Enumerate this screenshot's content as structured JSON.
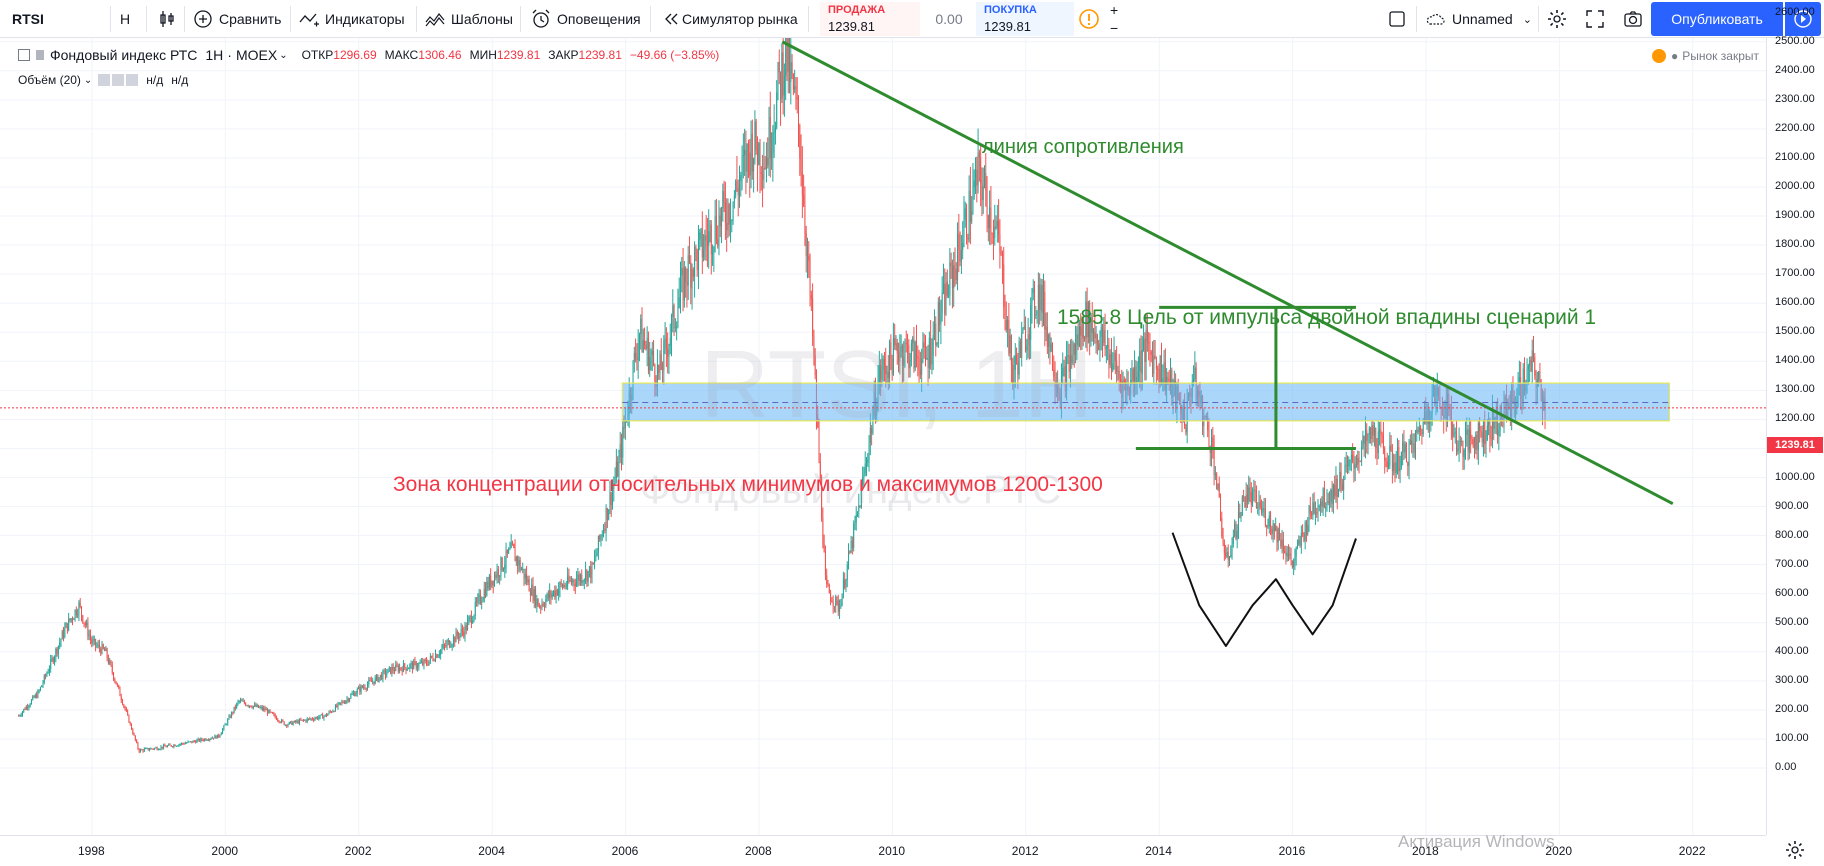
{
  "toolbar": {
    "symbol": "RTSI",
    "interval": "Н",
    "compare": "Сравнить",
    "indicators": "Индикаторы",
    "templates": "Шаблоны",
    "alerts": "Оповещения",
    "replay": "Симулятор рынка",
    "sell_label": "ПРОДАЖА",
    "sell_value": "1239.81",
    "spread": "0.00",
    "buy_label": "ПОКУПКА",
    "buy_value": "1239.81",
    "layout_name": "Unnamed",
    "publish": "Опубликовать"
  },
  "legend": {
    "title": "Фондовый индекс РТС",
    "interval": "1Н",
    "exchange": "MOEX",
    "open_label": "ОТКР",
    "open": "1296.69",
    "high_label": "МАКС",
    "high": "1306.46",
    "low_label": "МИН",
    "low": "1239.81",
    "close_label": "ЗАКР",
    "close": "1239.81",
    "change": "−49.66 (−3.85%)",
    "volume_label": "Объём (20)",
    "volume_na1": "н/д",
    "volume_na2": "н/д",
    "market_status": "Рынок закрыт"
  },
  "watermark": {
    "line1": "RTSI, 1Н",
    "line2": "Фондовый индекс РТС"
  },
  "annotations": {
    "resistance": "линия сопротивления",
    "target": "1585.8 Цель от импульса двойной впадины сценарий  1",
    "zone": "Зона концентрации относительных минимумов и максимумов 1200-1300"
  },
  "price_axis": {
    "ticks": [
      "2600.00",
      "2500.00",
      "2400.00",
      "2300.00",
      "2200.00",
      "2100.00",
      "2000.00",
      "1900.00",
      "1800.00",
      "1700.00",
      "1600.00",
      "1500.00",
      "1400.00",
      "1300.00",
      "1200.00",
      "1100.00",
      "1000.00",
      "900.00",
      "800.00",
      "700.00",
      "600.00",
      "500.00",
      "400.00",
      "300.00",
      "200.00",
      "100.00",
      "0.00"
    ],
    "last_price": "1239.81"
  },
  "time_axis": {
    "ticks": [
      "1998",
      "2000",
      "2002",
      "2004",
      "2006",
      "2008",
      "2010",
      "2012",
      "2014",
      "2016",
      "2018",
      "2020",
      "2022"
    ]
  },
  "os_overlay": "Активация Windows",
  "colors": {
    "up": "#26a69a",
    "down": "#ef5350",
    "resistance": "#2e8b2e",
    "zone_fill": "#64b5f6",
    "price_line": "#f23645",
    "accent": "#2962ff"
  },
  "chart_data": {
    "type": "candlestick",
    "x_unit": "year",
    "y_unit": "index points",
    "ylim": [
      0,
      2600
    ],
    "xlim": [
      1997,
      2023
    ],
    "series": [
      {
        "x": 1996.9,
        "y": 180
      },
      {
        "x": 1997.2,
        "y": 260
      },
      {
        "x": 1997.6,
        "y": 480
      },
      {
        "x": 1997.8,
        "y": 560
      },
      {
        "x": 1998.0,
        "y": 430
      },
      {
        "x": 1998.2,
        "y": 400
      },
      {
        "x": 1998.5,
        "y": 200
      },
      {
        "x": 1998.7,
        "y": 60
      },
      {
        "x": 1999.0,
        "y": 70
      },
      {
        "x": 1999.5,
        "y": 90
      },
      {
        "x": 1999.9,
        "y": 110
      },
      {
        "x": 2000.2,
        "y": 230
      },
      {
        "x": 2000.6,
        "y": 200
      },
      {
        "x": 2000.9,
        "y": 150
      },
      {
        "x": 2001.5,
        "y": 180
      },
      {
        "x": 2002.0,
        "y": 270
      },
      {
        "x": 2002.5,
        "y": 340
      },
      {
        "x": 2003.0,
        "y": 360
      },
      {
        "x": 2003.6,
        "y": 480
      },
      {
        "x": 2003.9,
        "y": 620
      },
      {
        "x": 2004.3,
        "y": 750
      },
      {
        "x": 2004.7,
        "y": 560
      },
      {
        "x": 2005.0,
        "y": 620
      },
      {
        "x": 2005.5,
        "y": 680
      },
      {
        "x": 2005.9,
        "y": 1050
      },
      {
        "x": 2006.2,
        "y": 1500
      },
      {
        "x": 2006.5,
        "y": 1350
      },
      {
        "x": 2006.9,
        "y": 1700
      },
      {
        "x": 2007.3,
        "y": 1850
      },
      {
        "x": 2007.6,
        "y": 1950
      },
      {
        "x": 2007.9,
        "y": 2150
      },
      {
        "x": 2008.1,
        "y": 2100
      },
      {
        "x": 2008.4,
        "y": 2470
      },
      {
        "x": 2008.6,
        "y": 2200
      },
      {
        "x": 2008.8,
        "y": 1500
      },
      {
        "x": 2009.0,
        "y": 620
      },
      {
        "x": 2009.2,
        "y": 550
      },
      {
        "x": 2009.5,
        "y": 900
      },
      {
        "x": 2009.8,
        "y": 1350
      },
      {
        "x": 2010.1,
        "y": 1450
      },
      {
        "x": 2010.5,
        "y": 1400
      },
      {
        "x": 2010.9,
        "y": 1700
      },
      {
        "x": 2011.3,
        "y": 2050
      },
      {
        "x": 2011.6,
        "y": 1800
      },
      {
        "x": 2011.8,
        "y": 1350
      },
      {
        "x": 2012.2,
        "y": 1650
      },
      {
        "x": 2012.5,
        "y": 1300
      },
      {
        "x": 2012.9,
        "y": 1550
      },
      {
        "x": 2013.2,
        "y": 1450
      },
      {
        "x": 2013.5,
        "y": 1300
      },
      {
        "x": 2013.8,
        "y": 1450
      },
      {
        "x": 2014.1,
        "y": 1350
      },
      {
        "x": 2014.4,
        "y": 1200
      },
      {
        "x": 2014.5,
        "y": 1350
      },
      {
        "x": 2014.8,
        "y": 1100
      },
      {
        "x": 2015.0,
        "y": 700
      },
      {
        "x": 2015.3,
        "y": 950
      },
      {
        "x": 2015.5,
        "y": 900
      },
      {
        "x": 2015.8,
        "y": 800
      },
      {
        "x": 2016.0,
        "y": 700
      },
      {
        "x": 2016.3,
        "y": 900
      },
      {
        "x": 2016.6,
        "y": 950
      },
      {
        "x": 2016.9,
        "y": 1050
      },
      {
        "x": 2017.2,
        "y": 1150
      },
      {
        "x": 2017.5,
        "y": 1050
      },
      {
        "x": 2017.8,
        "y": 1100
      },
      {
        "x": 2018.1,
        "y": 1280
      },
      {
        "x": 2018.3,
        "y": 1250
      },
      {
        "x": 2018.5,
        "y": 1100
      },
      {
        "x": 2018.8,
        "y": 1150
      },
      {
        "x": 2019.1,
        "y": 1200
      },
      {
        "x": 2019.4,
        "y": 1300
      },
      {
        "x": 2019.6,
        "y": 1380
      },
      {
        "x": 2019.8,
        "y": 1239.81
      }
    ],
    "drawings": {
      "resistance_line": [
        [
          2008.35,
          2500
        ],
        [
          2021.7,
          910
        ]
      ],
      "zone": [
        1200,
        1300
      ],
      "target_level": 1585.8,
      "neckline": 1100
    }
  }
}
